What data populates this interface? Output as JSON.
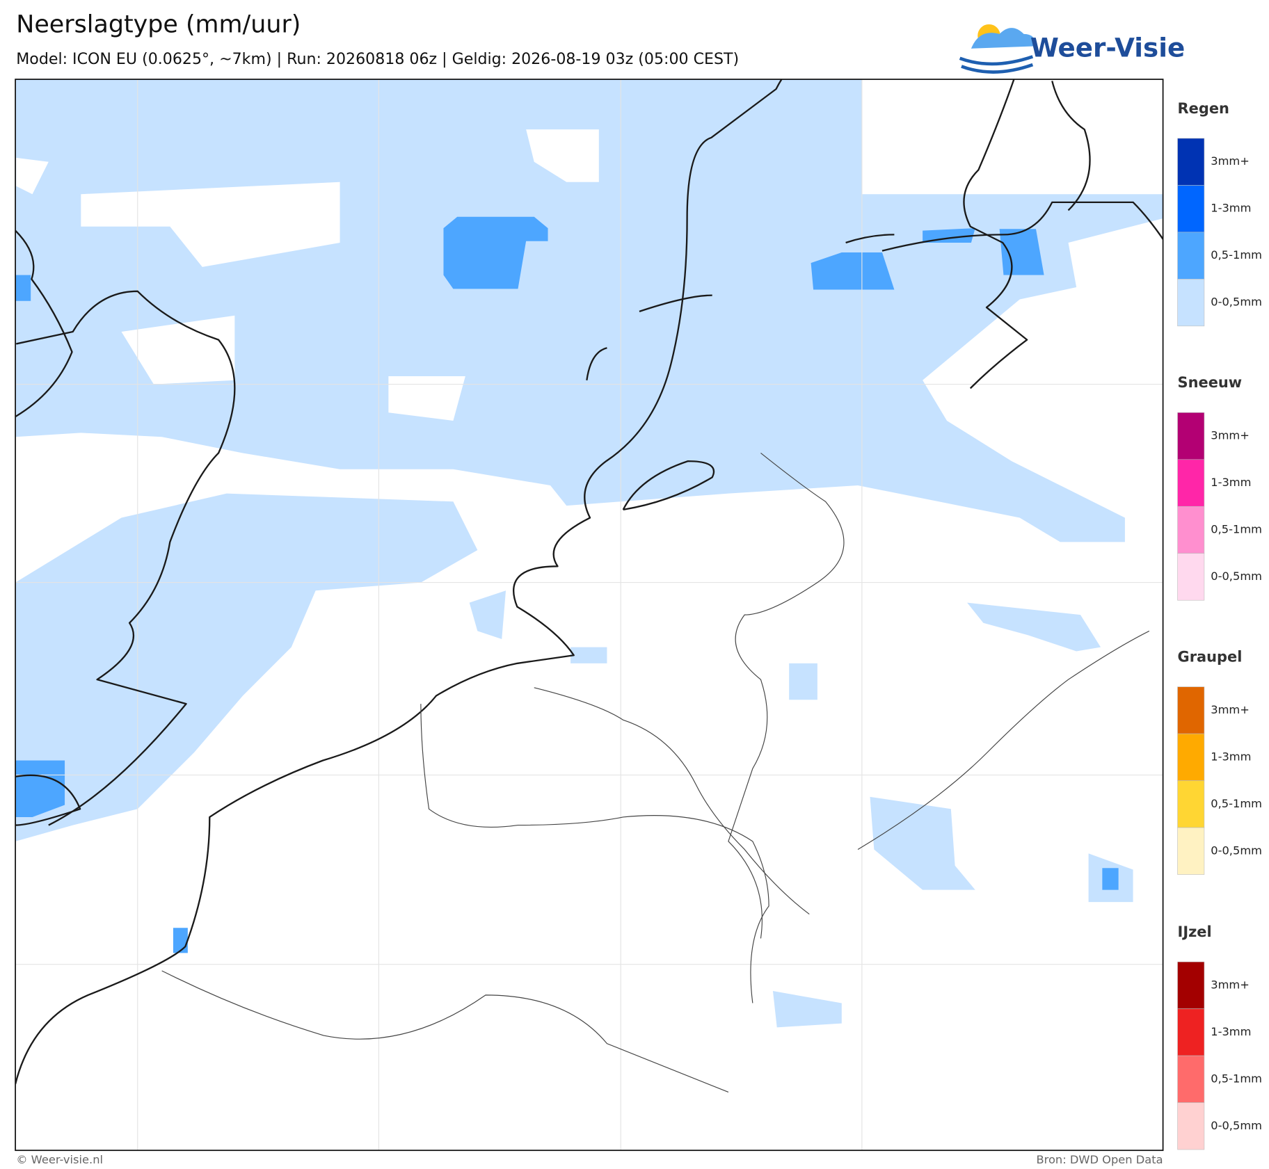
{
  "header": {
    "title": "Neerslagtype (mm/uur)",
    "subtitle": "Model: ICON EU (0.0625°, ~7km)  |  Run: 20260818 06z  |  Geldig: 2026-08-19 03z (05:00 CEST)"
  },
  "logo": {
    "text": "Weer-Visie"
  },
  "legend": [
    {
      "title": "Regen",
      "items": [
        {
          "label": "3mm+",
          "color": "#0033b3"
        },
        {
          "label": "1-3mm",
          "color": "#0066ff"
        },
        {
          "label": "0,5-1mm",
          "color": "#4da6ff"
        },
        {
          "label": "0-0,5mm",
          "color": "#c6e2ff"
        }
      ]
    },
    {
      "title": "Sneeuw",
      "items": [
        {
          "label": "3mm+",
          "color": "#b30073"
        },
        {
          "label": "1-3mm",
          "color": "#ff26a8"
        },
        {
          "label": "0,5-1mm",
          "color": "#ff8fcf"
        },
        {
          "label": "0-0,5mm",
          "color": "#ffd9ee"
        }
      ]
    },
    {
      "title": "Graupel",
      "items": [
        {
          "label": "3mm+",
          "color": "#e06600"
        },
        {
          "label": "1-3mm",
          "color": "#ffaa00"
        },
        {
          "label": "0,5-1mm",
          "color": "#ffd633"
        },
        {
          "label": "0-0,5mm",
          "color": "#fff2c2"
        }
      ]
    },
    {
      "title": "IJzel",
      "items": [
        {
          "label": "3mm+",
          "color": "#a30000"
        },
        {
          "label": "1-3mm",
          "color": "#ee2222"
        },
        {
          "label": "0,5-1mm",
          "color": "#ff6b6b"
        },
        {
          "label": "0-0,5mm",
          "color": "#ffd1d1"
        }
      ]
    }
  ],
  "footer": {
    "left": "© Weer-visie.nl",
    "right": "Bron: DWD Open Data"
  }
}
